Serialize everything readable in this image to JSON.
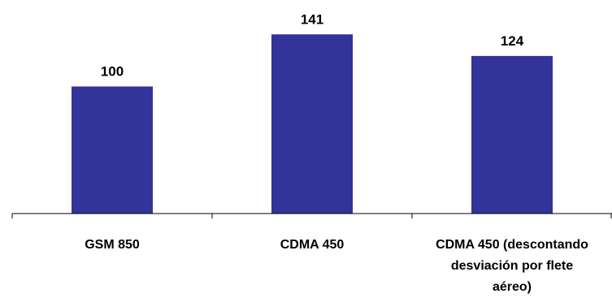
{
  "chart_data": {
    "type": "bar",
    "categories": [
      [
        "GSM 850"
      ],
      [
        "CDMA 450"
      ],
      [
        "CDMA 450 (descontando",
        "desviación por flete",
        "aéreo)"
      ]
    ],
    "values": [
      100,
      141,
      124
    ],
    "data_labels": [
      "100",
      "141",
      "124"
    ],
    "ylim": [
      0,
      168
    ],
    "grid": false,
    "legend": "none",
    "bar_color": "#333399",
    "axis_color": "#000000"
  }
}
